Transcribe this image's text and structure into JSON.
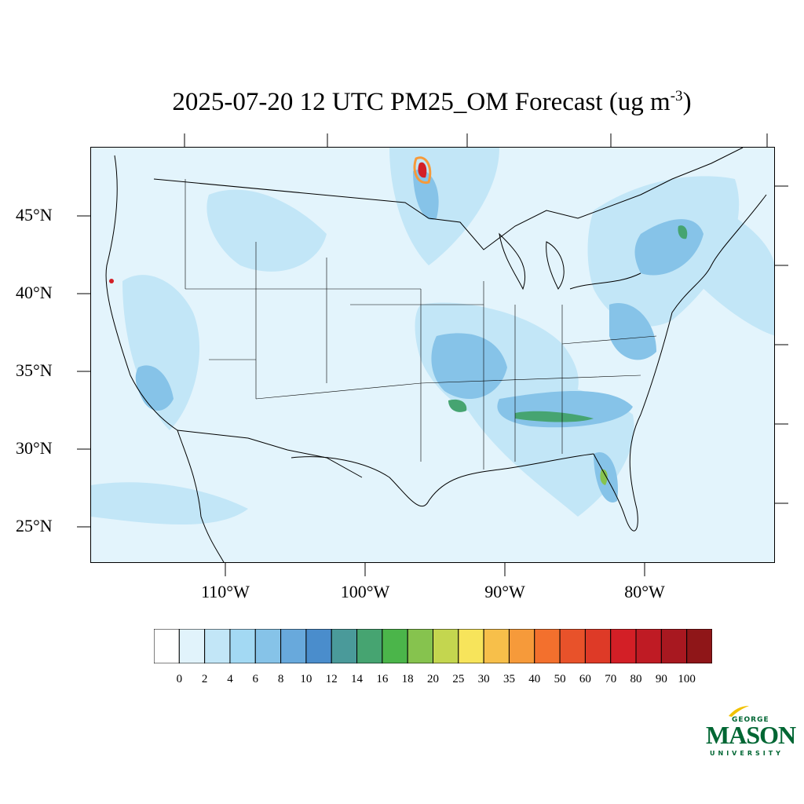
{
  "title": {
    "main": "2025-07-20 12 UTC PM25_OM Forecast (ug m",
    "superscript": "-3",
    "close": ")"
  },
  "lat_labels": [
    "45°N",
    "40°N",
    "35°N",
    "30°N",
    "25°N"
  ],
  "lon_labels": [
    "110°W",
    "100°W",
    "90°W",
    "80°W"
  ],
  "colorbar": {
    "labels": [
      "0",
      "2",
      "4",
      "6",
      "8",
      "10",
      "12",
      "14",
      "16",
      "18",
      "20",
      "25",
      "30",
      "35",
      "40",
      "50",
      "60",
      "70",
      "80",
      "90",
      "100"
    ],
    "colors": [
      "#ffffff",
      "#e1f3fb",
      "#c2e6f7",
      "#a3d9f3",
      "#86c3e8",
      "#68a9dc",
      "#4a8dcc",
      "#4a9a9a",
      "#46a471",
      "#4bb54a",
      "#86c34e",
      "#c4d64f",
      "#f7e45b",
      "#f7bf4a",
      "#f69a3a",
      "#f3702d",
      "#e8522a",
      "#de3a27",
      "#d31f26",
      "#bf1b24",
      "#a81820",
      "#8f1618"
    ]
  },
  "logo": {
    "george": "GEORGE",
    "mason": "MASON",
    "university": "UNIVERSITY"
  },
  "palette": {
    "background": "#e3f4fc",
    "light": "#c2e6f7",
    "medium": "#86c3e8",
    "dark": "#4a8dcc",
    "green": "#46a471",
    "lime": "#86c34e",
    "hot": "#d31f26"
  }
}
